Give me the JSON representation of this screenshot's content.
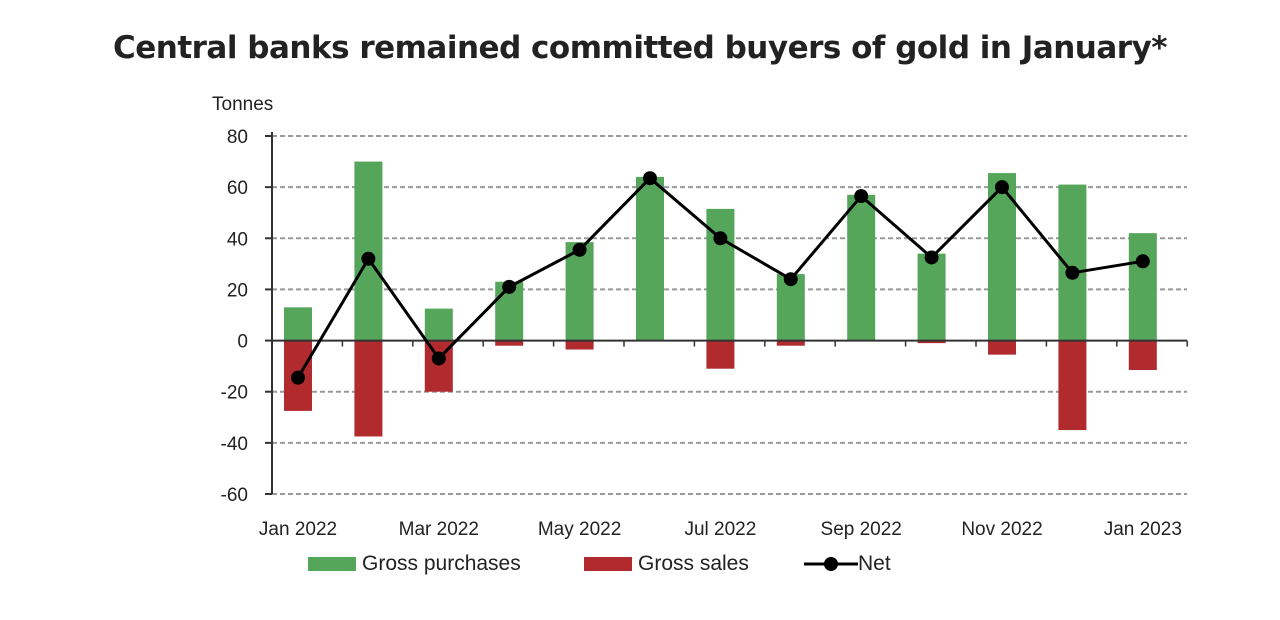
{
  "title": "Central banks remained committed buyers of gold in January*",
  "chart_data": {
    "type": "bar",
    "title": "Central banks remained committed buyers of gold in January*",
    "ylabel": "Tonnes",
    "ylim": [
      -60,
      80
    ],
    "yticks": [
      80,
      60,
      40,
      20,
      0,
      -20,
      -40,
      -60
    ],
    "grid": true,
    "legend_position": "bottom",
    "categories": [
      "Jan 2022",
      "Feb 2022",
      "Mar 2022",
      "Apr 2022",
      "May 2022",
      "Jun 2022",
      "Jul 2022",
      "Aug 2022",
      "Sep 2022",
      "Oct 2022",
      "Nov 2022",
      "Dec 2022",
      "Jan 2023"
    ],
    "xtick_labels": [
      "Jan 2022",
      "Mar 2022",
      "May 2022",
      "Jul 2022",
      "Sep 2022",
      "Nov 2022",
      "Jan 2023"
    ],
    "series": [
      {
        "name": "Gross purchases",
        "type": "bar",
        "color": "#55a55a",
        "values": [
          13,
          70,
          12.5,
          23,
          38.5,
          64,
          51.5,
          26,
          57,
          34,
          65.5,
          61,
          42
        ]
      },
      {
        "name": "Gross sales",
        "type": "bar",
        "color": "#b02a2e",
        "values": [
          -27.5,
          -37.5,
          -20,
          -2,
          -3.5,
          0,
          -11,
          -2,
          0,
          -1,
          -5.5,
          -35,
          -11.5
        ]
      },
      {
        "name": "Net",
        "type": "line",
        "color": "#000000",
        "values": [
          -14.5,
          32,
          -7,
          21,
          35.5,
          63.5,
          40,
          24,
          56.5,
          32.5,
          60,
          26.5,
          31
        ]
      }
    ]
  }
}
